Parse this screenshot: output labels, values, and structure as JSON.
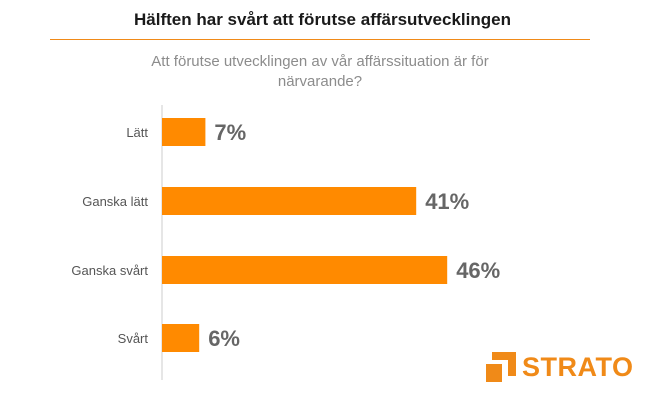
{
  "chart_data": {
    "type": "bar",
    "orientation": "horizontal",
    "title": "Hälften har svårt att förutse affärsutvecklingen",
    "subtitle": "Att förutse utvecklingen av vår affärssituation är för närvarande?",
    "categories": [
      "Lätt",
      "Ganska lätt",
      "Ganska svårt",
      "Svårt"
    ],
    "values": [
      7,
      41,
      46,
      6
    ],
    "value_labels": [
      "7%",
      "41%",
      "46%",
      "6%"
    ],
    "unit": "%",
    "xlim": [
      0,
      50
    ],
    "grid": false,
    "legend": "none",
    "colors": {
      "bar": "#ff8a00",
      "axis": "#cccccc",
      "value_label": "#666666",
      "category_label": "#555555",
      "brand": "#f08a18"
    }
  },
  "brand": {
    "logo_text": "STRATO",
    "logo_icon": "strato-logo-icon"
  }
}
